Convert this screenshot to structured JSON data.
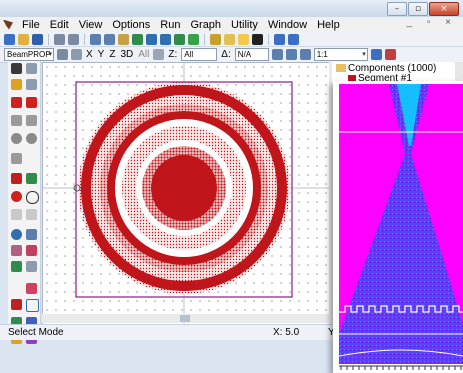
{
  "menubar": {
    "items": [
      "File",
      "Edit",
      "View",
      "Options",
      "Run",
      "Graph",
      "Utility",
      "Window",
      "Help"
    ],
    "mdi_controls": "_ ▫ ×"
  },
  "window_controls": {
    "minimize": "–",
    "maximize": "▫",
    "close": "×"
  },
  "toolbar2": {
    "mode_select": "BeamPROP",
    "view_x": "X",
    "view_y": "Y",
    "view_z": "Z",
    "view_3d": "3D",
    "all_label": "All",
    "z_label": "Z:",
    "z_value": "All",
    "delta_label": "Δ:",
    "delta_value": "N/A",
    "zoom_select": "1:1"
  },
  "tree": {
    "root_label": "Components (1000)",
    "child_label": "Segment #1"
  },
  "status": {
    "mode": "Select Mode",
    "x": "X: 5.0",
    "y": "Y:"
  },
  "colors": {
    "ring_red": "#c0151a",
    "design_border": "#8a1c8a",
    "result_background": "#ff00ff",
    "result_beam": "#1a3cff"
  }
}
